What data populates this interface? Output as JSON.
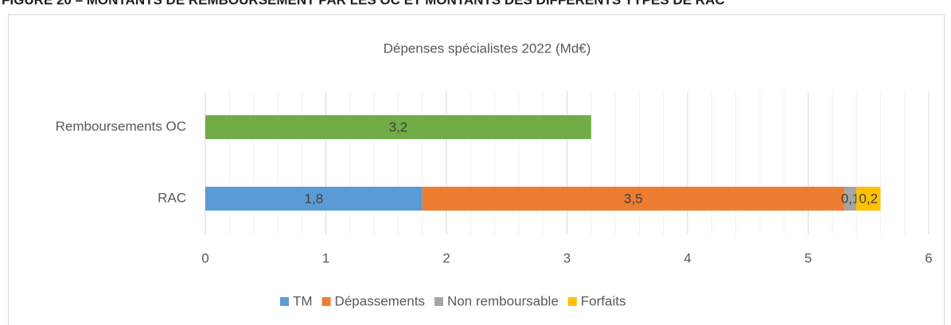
{
  "heading": "FIGURE 20 – MONTANTS DE REMBOURSEMENT PAR LES OC ET MONTANTS DES DIFFÉRENTS TYPES DE RAC",
  "chart_data": {
    "type": "bar",
    "orientation": "horizontal",
    "stacked": true,
    "title": "Dépenses spécialistes 2022 (Md€)",
    "categories": [
      "Remboursements OC",
      "RAC"
    ],
    "series": [
      {
        "name": "TM",
        "color": "#5b9bd5",
        "values": [
          null,
          1.8
        ],
        "value_labels": [
          null,
          "1,8"
        ]
      },
      {
        "name": "Dépassements",
        "color": "#ed7d31",
        "values": [
          null,
          3.5
        ],
        "value_labels": [
          null,
          "3,5"
        ]
      },
      {
        "name": "Non remboursable",
        "color": "#a5a5a5",
        "values": [
          null,
          0.1
        ],
        "value_labels": [
          null,
          "0,1"
        ]
      },
      {
        "name": "Forfaits",
        "color": "#ffc000",
        "values": [
          null,
          0.2
        ],
        "value_labels": [
          null,
          "0,2"
        ]
      },
      {
        "color": "#70ad47",
        "values": [
          3.2,
          null
        ],
        "value_labels": [
          "3,2",
          null
        ]
      }
    ],
    "xlim": [
      0,
      6
    ],
    "xticks": [
      0,
      1,
      2,
      3,
      4,
      5,
      6
    ],
    "grid": true,
    "legend": "bottom"
  }
}
